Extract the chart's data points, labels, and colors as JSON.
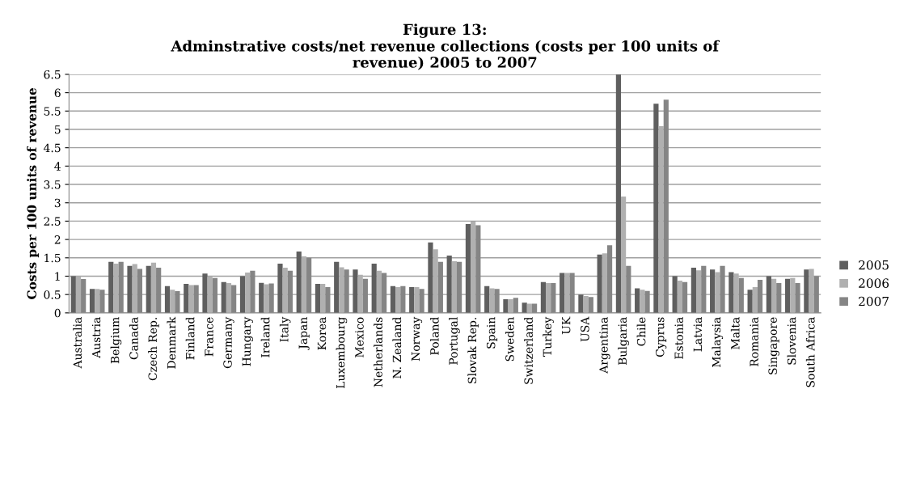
{
  "chart_data": {
    "type": "bar",
    "title": "Figure 13:\nAdminstrative costs/net revenue collections (costs per 100 units of\nrevenue) 2005 to 2007",
    "ylabel": "Costs per 100 units of revenue",
    "categories": [
      "Australia",
      "Austria",
      "Belgium",
      "Canada",
      "Czech Rep.",
      "Denmark",
      "Finland",
      "France",
      "Germany",
      "Hungary",
      "Ireland",
      "Italy",
      "Japan",
      "Korea",
      "Luxembourg",
      "Mexico",
      "Netherlands",
      "N. Zealand",
      "Norway",
      "Poland",
      "Portugal",
      "Slovak Rep.",
      "Spain",
      "Sweden",
      "Switzerland",
      "Turkey",
      "UK",
      "USA",
      "Argentina",
      "Bulgaria",
      "Chile",
      "Cyprus",
      "Estonia",
      "Latvia",
      "Malaysia",
      "Malta",
      "Romania",
      "Singapore",
      "Slovenia",
      "South Africa"
    ],
    "series": [
      {
        "name": "2005",
        "color": "#5f5f5f",
        "values": [
          1.0,
          0.65,
          1.39,
          1.28,
          1.28,
          0.73,
          0.79,
          1.07,
          0.84,
          1.0,
          0.82,
          1.34,
          1.67,
          0.79,
          1.39,
          1.18,
          1.34,
          0.73,
          0.7,
          1.92,
          1.56,
          2.42,
          0.73,
          0.37,
          0.28,
          0.84,
          1.09,
          0.5,
          1.59,
          6.5,
          0.67,
          5.7,
          1.0,
          1.23,
          1.18,
          1.11,
          0.63,
          1.0,
          0.93,
          1.18
        ]
      },
      {
        "name": "2006",
        "color": "#b0b0b0",
        "values": [
          1.0,
          0.65,
          1.34,
          1.33,
          1.37,
          0.63,
          0.76,
          1.0,
          0.81,
          1.1,
          0.78,
          1.23,
          1.54,
          0.79,
          1.24,
          1.04,
          1.15,
          0.7,
          0.7,
          1.73,
          1.41,
          2.49,
          0.67,
          0.37,
          0.25,
          0.81,
          1.09,
          0.46,
          1.62,
          3.17,
          0.63,
          5.09,
          0.88,
          1.16,
          1.11,
          1.07,
          0.7,
          0.93,
          0.95,
          1.2
        ]
      },
      {
        "name": "2007",
        "color": "#858585",
        "values": [
          0.92,
          0.63,
          1.39,
          1.2,
          1.23,
          0.59,
          0.76,
          0.95,
          0.76,
          1.15,
          0.8,
          1.15,
          1.5,
          0.7,
          1.18,
          0.93,
          1.09,
          0.73,
          0.65,
          1.39,
          1.39,
          2.39,
          0.65,
          0.41,
          0.25,
          0.81,
          1.09,
          0.43,
          1.84,
          1.28,
          0.6,
          5.81,
          0.84,
          1.28,
          1.28,
          0.95,
          0.9,
          0.81,
          0.81,
          1.0
        ]
      }
    ],
    "ylim": [
      0,
      6.5
    ],
    "yticks": [
      0,
      {
        "value": 0.5,
        "label": "0.5"
      },
      1,
      {
        "value": 1.5,
        "label": "1.5"
      },
      2,
      {
        "value": 2.5,
        "label": "2.5"
      },
      3,
      {
        "value": 3.5,
        "label": "3.5"
      },
      4,
      {
        "value": 4.5,
        "label": "4.5"
      },
      5,
      {
        "value": 5.5,
        "label": "5.5"
      },
      6,
      {
        "value": 6.5,
        "label": "6.5"
      }
    ],
    "grid": "y",
    "legend": "right"
  }
}
